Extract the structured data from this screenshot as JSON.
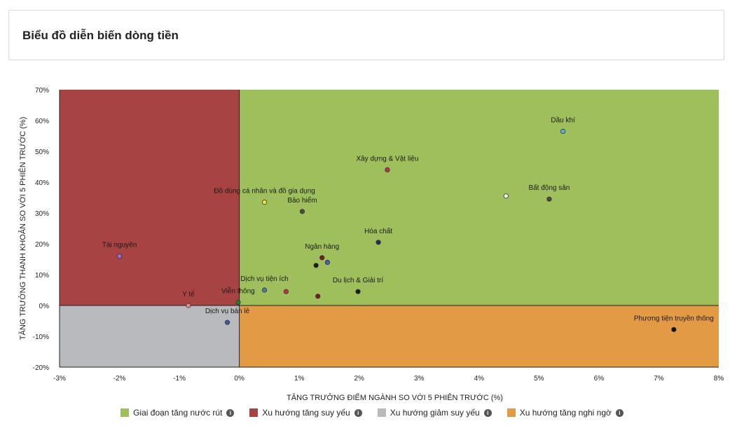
{
  "header": {
    "title": "Biểu đồ diễn biến dòng tiền"
  },
  "chart_data": {
    "type": "scatter",
    "xlabel": "TĂNG TRƯỞNG ĐIỂM NGÀNH SO VỚI 5 PHIÊN TRƯỚC (%)",
    "ylabel": "TĂNG TRƯỞNG THANH KHOẢN SO VỚI 5 PHIÊN TRƯỚC (%)",
    "xlim": [
      -3,
      8
    ],
    "ylim": [
      -20,
      70
    ],
    "x_ticks": [
      "-3%",
      "-2%",
      "-1%",
      "0%",
      "1%",
      "2%",
      "3%",
      "4%",
      "5%",
      "6%",
      "7%",
      "8%"
    ],
    "y_ticks": [
      "70%",
      "60%",
      "50%",
      "40%",
      "30%",
      "20%",
      "10%",
      "0%",
      "-10%",
      "-20%"
    ],
    "quadrants": {
      "top_right": "#9ebf5c",
      "top_left": "#a84343",
      "bottom_left": "#b9babd",
      "bottom_right": "#e29a45"
    },
    "points": [
      {
        "label": "Dầu khí",
        "x": 5.4,
        "y": 56.5,
        "color": "#5eb0e0"
      },
      {
        "label": "Xây dựng & Vật liệu",
        "x": 2.47,
        "y": 44,
        "color": "#c23345"
      },
      {
        "label": "Bất động sản",
        "x": 5.17,
        "y": 34.5,
        "color": "#4a4a4a"
      },
      {
        "label": "",
        "x": 4.45,
        "y": 35.5,
        "color": "#f1f1f1"
      },
      {
        "label": "Đồ dùng cá nhân và đồ gia dụng",
        "x": 0.42,
        "y": 33.5,
        "color": "#f2e633"
      },
      {
        "label": "Bảo hiểm",
        "x": 1.05,
        "y": 30.5,
        "color": "#4a4a4a"
      },
      {
        "label": "Hóa chất",
        "x": 2.32,
        "y": 20.5,
        "color": "#2a2a6a"
      },
      {
        "label": "Tài nguyên",
        "x": -2.0,
        "y": 16,
        "color": "#9a6be0"
      },
      {
        "label": "Ngân hàng",
        "x": 1.38,
        "y": 15.5,
        "color": "#7a1a25"
      },
      {
        "label": "",
        "x": 1.47,
        "y": 14,
        "color": "#4a5ac8"
      },
      {
        "label": "",
        "x": 1.28,
        "y": 13,
        "color": "#1a1a1a"
      },
      {
        "label": "Dịch vụ tiện ích",
        "x": 0.42,
        "y": 5,
        "color": "#4a7ab0"
      },
      {
        "label": "",
        "x": 0.78,
        "y": 4.5,
        "color": "#c23345"
      },
      {
        "label": "Du lịch & Giải trí",
        "x": 1.98,
        "y": 4.5,
        "color": "#1a1a1a"
      },
      {
        "label": "",
        "x": 1.31,
        "y": 3,
        "color": "#7a1a25"
      },
      {
        "label": "Viễn thông",
        "x": -0.02,
        "y": 1,
        "color": "#2a7a2a"
      },
      {
        "label": "Y tế",
        "x": -0.85,
        "y": 0,
        "color": "#e88a8a"
      },
      {
        "label": "Dịch vụ bán lẻ",
        "x": -0.2,
        "y": -5.5,
        "color": "#3a5aa8"
      },
      {
        "label": "Phương tiện truyền thông",
        "x": 7.25,
        "y": -7.8,
        "color": "#111111"
      }
    ],
    "legend": [
      {
        "label": "Giai đoạn tăng nước rút",
        "color": "#9ebf5c"
      },
      {
        "label": "Xu hướng tăng suy yếu",
        "color": "#a84343"
      },
      {
        "label": "Xu hướng giảm suy yếu",
        "color": "#b9babd"
      },
      {
        "label": "Xu hướng tăng nghi ngờ",
        "color": "#e29a45"
      }
    ]
  }
}
